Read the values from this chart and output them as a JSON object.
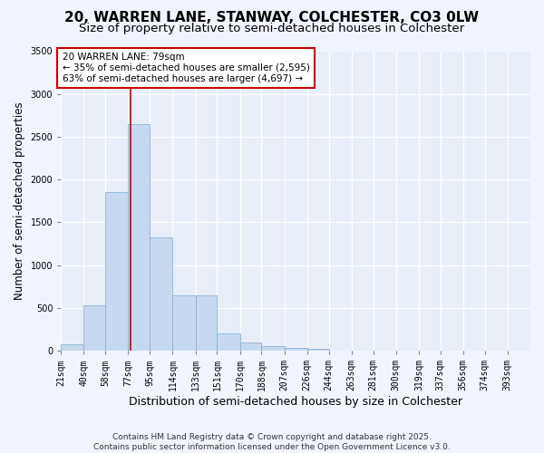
{
  "title1": "20, WARREN LANE, STANWAY, COLCHESTER, CO3 0LW",
  "title2": "Size of property relative to semi-detached houses in Colchester",
  "xlabel": "Distribution of semi-detached houses by size in Colchester",
  "ylabel": "Number of semi-detached properties",
  "footer": "Contains HM Land Registry data © Crown copyright and database right 2025.\nContains public sector information licensed under the Open Government Licence v3.0.",
  "bins": [
    21,
    40,
    58,
    77,
    95,
    114,
    133,
    151,
    170,
    188,
    207,
    226,
    244,
    263,
    281,
    300,
    319,
    337,
    356,
    374,
    393
  ],
  "bin_labels": [
    "21sqm",
    "40sqm",
    "58sqm",
    "77sqm",
    "95sqm",
    "114sqm",
    "133sqm",
    "151sqm",
    "170sqm",
    "188sqm",
    "207sqm",
    "226sqm",
    "244sqm",
    "263sqm",
    "281sqm",
    "300sqm",
    "319sqm",
    "337sqm",
    "356sqm",
    "374sqm",
    "393sqm"
  ],
  "values": [
    75,
    530,
    1850,
    2650,
    1320,
    650,
    650,
    200,
    100,
    55,
    30,
    20,
    5,
    2,
    1,
    0,
    0,
    0,
    0,
    0
  ],
  "bar_color": "#c6d9f0",
  "bar_edge_color": "#7bafd4",
  "property_sqm": 79,
  "property_line_color": "#cc0000",
  "annotation_text": "20 WARREN LANE: 79sqm\n← 35% of semi-detached houses are smaller (2,595)\n63% of semi-detached houses are larger (4,697) →",
  "annotation_box_color": "#ffffff",
  "annotation_box_edge": "#cc0000",
  "ylim": [
    0,
    3500
  ],
  "yticks": [
    0,
    500,
    1000,
    1500,
    2000,
    2500,
    3000,
    3500
  ],
  "background_color": "#f0f4ff",
  "plot_bg_color": "#e8eef8",
  "grid_color": "#ffffff",
  "title_fontsize": 11,
  "subtitle_fontsize": 9.5,
  "tick_fontsize": 7,
  "ylabel_fontsize": 8.5,
  "xlabel_fontsize": 9,
  "footer_fontsize": 6.5
}
